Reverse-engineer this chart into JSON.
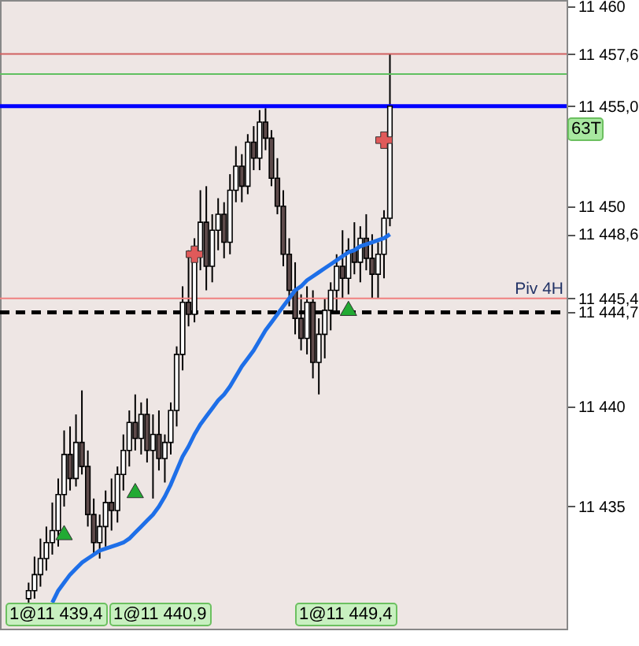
{
  "chart_data": {
    "type": "candlestick",
    "categories": [
      null,
      null,
      null,
      null,
      null,
      null,
      null,
      null,
      null,
      null,
      null,
      null,
      null,
      null,
      null,
      null,
      null,
      null,
      null,
      null,
      null,
      null,
      null,
      null,
      null,
      null,
      null,
      null,
      null,
      null,
      null,
      null,
      null,
      null,
      null,
      null,
      null,
      null,
      null,
      null,
      null,
      null,
      null,
      null,
      null,
      null,
      null,
      null,
      null,
      null,
      null,
      null,
      null,
      null,
      null,
      null,
      null,
      null,
      null,
      null,
      null,
      null
    ],
    "ohlc": [
      [
        11430.4,
        11431.2,
        11430.2,
        11430.8
      ],
      [
        11430.8,
        11432.5,
        11430.4,
        11431.6
      ],
      [
        11431.6,
        11433.4,
        11431.0,
        11432.4
      ],
      [
        11432.4,
        11434.0,
        11431.8,
        11433.2
      ],
      [
        11433.2,
        11435.2,
        11432.6,
        11433.8
      ],
      [
        11433.8,
        11436.4,
        11433.0,
        11435.6
      ],
      [
        11435.6,
        11438.8,
        11435.0,
        11437.6
      ],
      [
        11437.6,
        11439.0,
        11435.8,
        11436.4
      ],
      [
        11436.4,
        11439.6,
        11436.0,
        11438.2
      ],
      [
        11438.2,
        11440.8,
        11436.6,
        11437.0
      ],
      [
        11437.0,
        11437.8,
        11434.0,
        11434.6
      ],
      [
        11434.6,
        11435.4,
        11432.6,
        11433.2
      ],
      [
        11433.2,
        11434.6,
        11432.4,
        11434.0
      ],
      [
        11434.0,
        11435.8,
        11433.0,
        11435.2
      ],
      [
        11435.2,
        11436.4,
        11433.8,
        11434.8
      ],
      [
        11434.8,
        11437.0,
        11434.2,
        11436.6
      ],
      [
        11436.6,
        11438.6,
        11435.8,
        11437.8
      ],
      [
        11437.8,
        11439.8,
        11437.0,
        11439.2
      ],
      [
        11439.2,
        11440.6,
        11437.8,
        11438.4
      ],
      [
        11438.4,
        11440.2,
        11437.6,
        11439.6
      ],
      [
        11439.6,
        11440.4,
        11437.2,
        11437.8
      ],
      [
        11437.8,
        11439.6,
        11435.4,
        11438.6
      ],
      [
        11438.6,
        11439.8,
        11436.8,
        11437.4
      ],
      [
        11437.4,
        11438.6,
        11436.2,
        11438.2
      ],
      [
        11438.2,
        11440.2,
        11437.6,
        11439.8
      ],
      [
        11439.8,
        11443.0,
        11439.0,
        11442.6
      ],
      [
        11442.6,
        11446.0,
        11441.8,
        11445.2
      ],
      [
        11445.2,
        11447.8,
        11444.0,
        11444.6
      ],
      [
        11444.6,
        11448.4,
        11444.2,
        11447.6
      ],
      [
        11447.6,
        11450.8,
        11446.8,
        11449.2
      ],
      [
        11449.2,
        11451.0,
        11445.8,
        11447.0
      ],
      [
        11447.0,
        11449.6,
        11446.2,
        11448.8
      ],
      [
        11448.8,
        11450.4,
        11447.8,
        11449.6
      ],
      [
        11449.6,
        11450.2,
        11447.4,
        11448.2
      ],
      [
        11448.2,
        11451.6,
        11447.6,
        11450.8
      ],
      [
        11450.8,
        11453.0,
        11450.2,
        11452.0
      ],
      [
        11452.0,
        11452.6,
        11450.2,
        11451.0
      ],
      [
        11451.0,
        11453.6,
        11450.6,
        11453.2
      ],
      [
        11453.2,
        11454.0,
        11451.8,
        11452.4
      ],
      [
        11452.4,
        11454.8,
        11451.8,
        11454.2
      ],
      [
        11454.2,
        11454.9,
        11452.8,
        11453.4
      ],
      [
        11453.4,
        11453.8,
        11451.0,
        11451.4
      ],
      [
        11451.4,
        11452.4,
        11449.6,
        11450.0
      ],
      [
        11450.0,
        11450.8,
        11447.0,
        11447.6
      ],
      [
        11447.6,
        11448.4,
        11445.0,
        11445.8
      ],
      [
        11445.8,
        11447.2,
        11443.6,
        11444.4
      ],
      [
        11444.4,
        11445.6,
        11442.8,
        11443.4
      ],
      [
        11443.4,
        11446.0,
        11442.6,
        11445.2
      ],
      [
        11445.2,
        11445.8,
        11441.4,
        11442.2
      ],
      [
        11442.2,
        11444.4,
        11440.6,
        11443.6
      ],
      [
        11443.6,
        11445.4,
        11442.4,
        11444.8
      ],
      [
        11444.8,
        11446.2,
        11443.8,
        11445.8
      ],
      [
        11445.8,
        11447.6,
        11444.6,
        11447.0
      ],
      [
        11447.0,
        11448.8,
        11445.4,
        11446.4
      ],
      [
        11446.4,
        11448.4,
        11445.6,
        11447.8
      ],
      [
        11447.8,
        11449.2,
        11446.6,
        11447.2
      ],
      [
        11447.2,
        11449.0,
        11446.2,
        11448.4
      ],
      [
        11448.4,
        11449.6,
        11446.8,
        11447.4
      ],
      [
        11447.4,
        11448.6,
        11445.4,
        11446.6
      ],
      [
        11446.6,
        11448.2,
        11445.4,
        11447.6
      ],
      [
        11447.6,
        11449.8,
        11446.4,
        11449.4
      ],
      [
        11449.4,
        11457.6,
        11449.0,
        11455.0
      ]
    ],
    "series": [
      {
        "type": "line",
        "color": "#1e6fe8",
        "values": [
          null,
          null,
          null,
          null,
          11430.2,
          11430.8,
          11431.2,
          11431.6,
          11431.9,
          11432.2,
          11432.4,
          11432.6,
          11432.8,
          11432.9,
          11433.0,
          11433.1,
          11433.2,
          11433.4,
          11433.7,
          11434.0,
          11434.3,
          11434.6,
          11435.0,
          11435.5,
          11436.1,
          11436.8,
          11437.5,
          11438.0,
          11438.6,
          11439.1,
          11439.5,
          11439.9,
          11440.3,
          11440.6,
          11441.0,
          11441.5,
          11442.0,
          11442.4,
          11442.8,
          11443.3,
          11443.8,
          11444.2,
          11444.6,
          11445.0,
          11445.4,
          11445.8,
          11446.0,
          11446.3,
          11446.5,
          11446.7,
          11446.9,
          11447.1,
          11447.3,
          11447.5,
          11447.7,
          11447.8,
          11448.0,
          11448.1,
          11448.2,
          11448.3,
          11448.4,
          11448.6
        ]
      },
      {
        "type": "scatter",
        "marker": "triangle",
        "color": "#22aa33",
        "values": [
          null,
          null,
          null,
          null,
          null,
          null,
          11433.7,
          null,
          null,
          null,
          null,
          null,
          null,
          null,
          null,
          null,
          null,
          null,
          11435.8,
          null,
          null,
          null,
          null,
          null,
          null,
          null,
          null,
          null,
          null,
          null,
          null,
          null,
          null,
          null,
          null,
          null,
          null,
          null,
          null,
          null,
          null,
          null,
          null,
          null,
          null,
          null,
          null,
          null,
          null,
          null,
          null,
          null,
          null,
          null,
          11444.9,
          null,
          null,
          null,
          null,
          null,
          null,
          null
        ]
      },
      {
        "type": "scatter",
        "marker": "cross",
        "color": "#e05a5a",
        "values": [
          null,
          null,
          null,
          null,
          null,
          null,
          null,
          null,
          null,
          null,
          null,
          null,
          null,
          null,
          null,
          null,
          null,
          null,
          null,
          null,
          null,
          null,
          null,
          null,
          null,
          null,
          null,
          null,
          11447.6,
          null,
          null,
          null,
          null,
          null,
          null,
          null,
          null,
          null,
          null,
          null,
          null,
          null,
          null,
          null,
          null,
          null,
          null,
          null,
          null,
          null,
          null,
          null,
          null,
          null,
          null,
          null,
          null,
          null,
          null,
          null,
          11453.3,
          null
        ]
      }
    ],
    "ylim": [
      11428.9,
      11460.3
    ],
    "yticks": [
      {
        "value": 11435,
        "label": "11 435"
      },
      {
        "value": 11440,
        "label": "11 440"
      },
      {
        "value": 11444.7,
        "label": "11 444,7"
      },
      {
        "value": 11445.4,
        "label": "11 445,4"
      },
      {
        "value": 11448.6,
        "label": "11 448,6"
      },
      {
        "value": 11450,
        "label": "11 450"
      },
      {
        "value": 11455.0,
        "label": "11 455,0"
      },
      {
        "value": 11457.6,
        "label": "11 457,6"
      },
      {
        "value": 11460,
        "label": "11 460"
      }
    ],
    "ref_lines": [
      {
        "axis": "y",
        "value": 11457.6,
        "label": null,
        "color": "#d06060"
      },
      {
        "axis": "y",
        "value": 11456.6,
        "label": null,
        "color": "#60c060"
      },
      {
        "axis": "y",
        "value": 11455.0,
        "label": null,
        "color": "#0000ff"
      },
      {
        "axis": "y",
        "value": 11445.4,
        "label": "Piv 4H",
        "color": "#f08080"
      },
      {
        "axis": "y",
        "value": 11444.7,
        "label": null,
        "color": "#000000",
        "line_style": "dashed"
      }
    ],
    "annotations": [
      "1@11 439,4",
      "1@11 440,9",
      "1@11 449,4",
      "63T"
    ],
    "tick_labels": "y",
    "grid": false
  }
}
